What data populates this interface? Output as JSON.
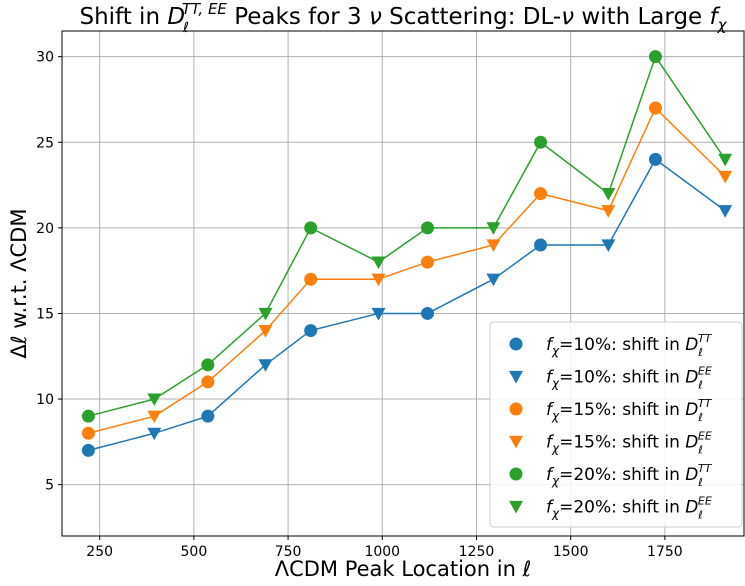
{
  "chart_data": {
    "type": "scatter",
    "title": "Shift in D_ℓ^{TT,EE} Peaks for 3 ν Scattering: DL-ν with Large f_χ",
    "xlabel": "ΛCDM Peak Location in ℓ",
    "ylabel": "Δℓ w.r.t. ΛCDM",
    "xlim": [
      150,
      1960
    ],
    "ylim": [
      2,
      31.5
    ],
    "xticks": [
      250,
      500,
      750,
      1000,
      1250,
      1500,
      1750
    ],
    "yticks": [
      5,
      10,
      15,
      20,
      25,
      30
    ],
    "grid": true,
    "legend_position": "lower-right",
    "series": [
      {
        "name": "f_χ=10%: shift in D_ℓ^TT",
        "color": "#1f77b4",
        "marker": "circle",
        "x": [
          220,
          537,
          810,
          1120,
          1420,
          1725
        ],
        "y": [
          7,
          9,
          14,
          15,
          19,
          24
        ]
      },
      {
        "name": "f_χ=10%: shift in D_ℓ^EE",
        "color": "#1f77b4",
        "marker": "triangle-down",
        "x": [
          395,
          690,
          990,
          1295,
          1600,
          1910
        ],
        "y": [
          8,
          12,
          15,
          17,
          19,
          21
        ]
      },
      {
        "name": "f_χ=15%: shift in D_ℓ^TT",
        "color": "#ff7f0e",
        "marker": "circle",
        "x": [
          220,
          537,
          810,
          1120,
          1420,
          1725
        ],
        "y": [
          8,
          11,
          17,
          18,
          22,
          27
        ]
      },
      {
        "name": "f_χ=15%: shift in D_ℓ^EE",
        "color": "#ff7f0e",
        "marker": "triangle-down",
        "x": [
          395,
          690,
          990,
          1295,
          1600,
          1910
        ],
        "y": [
          9,
          14,
          17,
          19,
          21,
          23
        ]
      },
      {
        "name": "f_χ=20%: shift in D_ℓ^TT",
        "color": "#2ca02c",
        "marker": "circle",
        "x": [
          220,
          537,
          810,
          1120,
          1420,
          1725
        ],
        "y": [
          9,
          12,
          20,
          20,
          25,
          30
        ]
      },
      {
        "name": "f_χ=20%: shift in D_ℓ^EE",
        "color": "#2ca02c",
        "marker": "triangle-down",
        "x": [
          395,
          690,
          990,
          1295,
          1600,
          1910
        ],
        "y": [
          10,
          15,
          18,
          20,
          22,
          24
        ]
      }
    ]
  }
}
